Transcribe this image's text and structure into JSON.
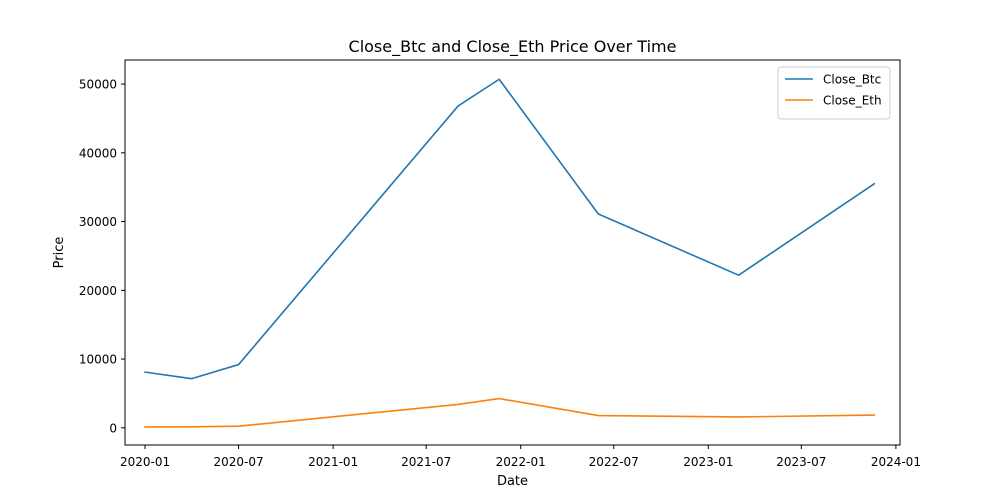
{
  "chart_data": {
    "type": "line",
    "title": "Close_Btc and Close_Eth Price Over Time",
    "xlabel": "Date",
    "ylabel": "Price",
    "grid": false,
    "legend_position": "top-right",
    "xlim": [
      "2019-11-23",
      "2024-01-09"
    ],
    "ylim": [
      -2500,
      53500
    ],
    "x_ticks": [
      "2020-01",
      "2020-07",
      "2021-01",
      "2021-07",
      "2022-01",
      "2022-07",
      "2023-01",
      "2023-07",
      "2024-01"
    ],
    "y_ticks": [
      0,
      10000,
      20000,
      30000,
      40000,
      50000
    ],
    "x": [
      "2020-01-01",
      "2020-04-01",
      "2020-07-01",
      "2021-09-01",
      "2021-11-20",
      "2022-06-01",
      "2023-03-01",
      "2023-11-20"
    ],
    "series": [
      {
        "name": "Close_Btc",
        "color": "#1f77b4",
        "values": [
          8100,
          7150,
          9200,
          46800,
          50700,
          31100,
          22200,
          35500
        ]
      },
      {
        "name": "Close_Eth",
        "color": "#ff7f0e",
        "values": [
          130,
          150,
          230,
          3400,
          4250,
          1780,
          1580,
          1850
        ]
      }
    ]
  }
}
